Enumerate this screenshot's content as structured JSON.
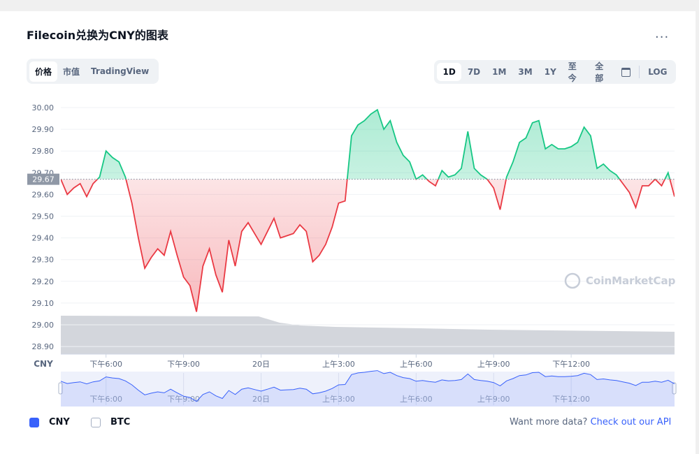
{
  "header": {
    "title": "Filecoin兑换为CNY的图表",
    "menu": "..."
  },
  "tabs": [
    "价格",
    "市值",
    "TradingView"
  ],
  "ranges": [
    "1D",
    "7D",
    "1M",
    "3M",
    "1Y",
    "至今",
    "全部",
    "LOG"
  ],
  "chart_data": {
    "type": "line",
    "currency_label": "CNY",
    "watermark": "CoinMarketCap",
    "baseline": 29.67,
    "up_color": "#16c784",
    "down_color": "#ea3943",
    "navigator_color": "#3861fb",
    "grid": true,
    "x": [
      16.25,
      16.5,
      16.75,
      17,
      17.25,
      17.5,
      17.75,
      18,
      18.25,
      18.5,
      18.75,
      19,
      19.25,
      19.5,
      19.75,
      20,
      20.25,
      20.5,
      20.75,
      21,
      21.25,
      21.5,
      21.75,
      22,
      22.25,
      22.5,
      22.75,
      23,
      23.25,
      23.5,
      23.75,
      24,
      24.25,
      24.5,
      24.75,
      25,
      25.25,
      25.5,
      25.75,
      26,
      26.25,
      26.5,
      26.75,
      27,
      27.25,
      27.5,
      27.75,
      28,
      28.25,
      28.5,
      28.75,
      29,
      29.25,
      29.5,
      29.75,
      30,
      30.25,
      30.5,
      30.75,
      31,
      31.25,
      31.5,
      31.75,
      32,
      32.25,
      32.5,
      32.75,
      33,
      33.25,
      33.5,
      33.75,
      34,
      34.25,
      34.5,
      34.75,
      35,
      35.25,
      35.5,
      35.75,
      36,
      36.25,
      36.5,
      36.75,
      37,
      37.25,
      37.5,
      37.75,
      38,
      38.25,
      38.5,
      38.75,
      39,
      39.25,
      39.5,
      39.75,
      40
    ],
    "series": [
      {
        "name": "CNY",
        "values": [
          29.67,
          29.6,
          29.63,
          29.65,
          29.59,
          29.65,
          29.68,
          29.8,
          29.77,
          29.75,
          29.68,
          29.56,
          29.4,
          29.26,
          29.31,
          29.35,
          29.32,
          29.43,
          29.32,
          29.22,
          29.18,
          29.06,
          29.27,
          29.35,
          29.23,
          29.15,
          29.39,
          29.27,
          29.43,
          29.47,
          29.42,
          29.37,
          29.43,
          29.49,
          29.4,
          29.41,
          29.42,
          29.46,
          29.43,
          29.29,
          29.32,
          29.37,
          29.45,
          29.56,
          29.57,
          29.87,
          29.92,
          29.94,
          29.97,
          29.99,
          29.9,
          29.94,
          29.84,
          29.78,
          29.75,
          29.67,
          29.69,
          29.66,
          29.64,
          29.71,
          29.68,
          29.69,
          29.72,
          29.89,
          29.72,
          29.69,
          29.67,
          29.63,
          29.53,
          29.68,
          29.75,
          29.84,
          29.86,
          29.93,
          29.94,
          29.81,
          29.83,
          29.81,
          29.81,
          29.82,
          29.84,
          29.91,
          29.87,
          29.72,
          29.74,
          29.71,
          29.69,
          29.65,
          29.61,
          29.54,
          29.64,
          29.64,
          29.67,
          29.64,
          29.7,
          29.59
        ]
      }
    ],
    "xlim": [
      16.25,
      40
    ],
    "xticks": [
      {
        "value": 18,
        "label": "下午6:00"
      },
      {
        "value": 21,
        "label": "下午9:00"
      },
      {
        "value": 24,
        "label": "20日"
      },
      {
        "value": 27,
        "label": "上午3:00"
      },
      {
        "value": 30,
        "label": "上午6:00"
      },
      {
        "value": 33,
        "label": "上午9:00"
      },
      {
        "value": 36,
        "label": "下午12:00"
      }
    ],
    "ylim": [
      28.865,
      30.045
    ],
    "yticks": [
      {
        "value": 28.9,
        "label": "28.90"
      },
      {
        "value": 29,
        "label": "29.00"
      },
      {
        "value": 29.1,
        "label": "29.10"
      },
      {
        "value": 29.2,
        "label": "29.20"
      },
      {
        "value": 29.3,
        "label": "29.30"
      },
      {
        "value": 29.4,
        "label": "29.40"
      },
      {
        "value": 29.5,
        "label": "29.50"
      },
      {
        "value": 29.6,
        "label": "29.60"
      },
      {
        "value": 29.7,
        "label": "29.70"
      },
      {
        "value": 29.8,
        "label": "29.80"
      },
      {
        "value": 29.9,
        "label": "29.90"
      },
      {
        "value": 30,
        "label": "30.00"
      }
    ]
  },
  "footer": {
    "options": [
      "CNY",
      "BTC"
    ],
    "prompt": "Want more data?",
    "link": "Check out our API"
  }
}
